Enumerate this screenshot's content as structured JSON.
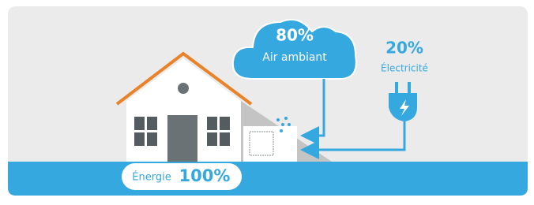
{
  "air": {
    "percent": "80%",
    "label": "Air ambiant"
  },
  "electricity": {
    "percent": "20%",
    "label": "Électricité"
  },
  "energy": {
    "label": "Énergie",
    "percent": "100%"
  }
}
